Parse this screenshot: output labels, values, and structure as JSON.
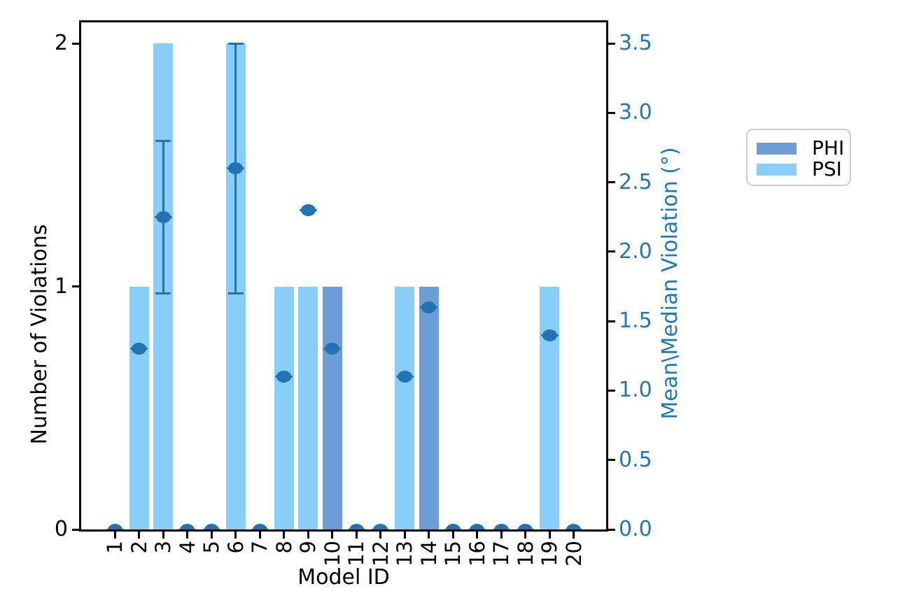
{
  "chart_data": {
    "type": "bar+scatter",
    "title": "",
    "categories": [
      1,
      2,
      3,
      4,
      5,
      6,
      7,
      8,
      9,
      10,
      11,
      12,
      13,
      14,
      15,
      16,
      17,
      18,
      19,
      20
    ],
    "bars": {
      "series": [
        {
          "name": "PHI",
          "color": "#6C9DD5",
          "values": [
            0,
            0,
            0,
            0,
            0,
            0,
            0,
            0,
            0,
            1,
            0,
            0,
            0,
            1,
            0,
            0,
            0,
            0,
            0,
            0
          ]
        },
        {
          "name": "PSI",
          "color": "#87CEFA",
          "values": [
            0,
            1,
            2,
            0,
            0,
            2,
            0,
            1,
            1,
            0,
            0,
            0,
            1,
            0,
            0,
            0,
            0,
            0,
            1,
            0
          ]
        }
      ]
    },
    "points": {
      "name": "mean-median-violation",
      "color": "#2173B4",
      "values": [
        0,
        1.3,
        2.25,
        0,
        0,
        2.6,
        0,
        1.1,
        2.3,
        1.3,
        0,
        0,
        1.1,
        1.6,
        0,
        0,
        0,
        0,
        1.4,
        0
      ],
      "errors": [
        0,
        0,
        0.55,
        0,
        0,
        0.9,
        0,
        0,
        0,
        0,
        0,
        0,
        0,
        0,
        0,
        0,
        0,
        0,
        0,
        0
      ]
    },
    "axes": {
      "xlabel": "Model ID",
      "ylabel_left": "Number of Violations",
      "ylabel_right": "Mean\\Median Violation (°)",
      "xticks": [
        "1",
        "2",
        "3",
        "4",
        "5",
        "6",
        "7",
        "8",
        "9",
        "10",
        "11",
        "12",
        "13",
        "14",
        "15",
        "16",
        "17",
        "18",
        "19",
        "20"
      ],
      "yticks_left": [
        "0",
        "1",
        "2"
      ],
      "yticks_right": [
        "0.0",
        "0.5",
        "1.0",
        "1.5",
        "2.0",
        "2.5",
        "3.0",
        "3.5"
      ],
      "ylim_left": [
        0,
        2.09
      ],
      "ylim_right": [
        0,
        3.65
      ],
      "grid": "off",
      "right_axis_color": "#1F77B4"
    },
    "legend": {
      "position": "outside-right",
      "items": [
        {
          "label": "PHI",
          "color": "#6C9DD5"
        },
        {
          "label": "PSI",
          "color": "#87CEFA"
        }
      ]
    }
  }
}
